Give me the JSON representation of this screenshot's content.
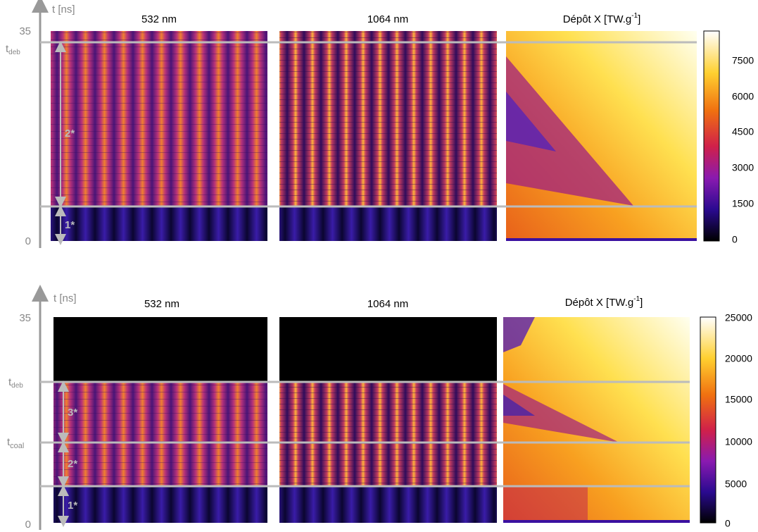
{
  "figures": [
    {
      "time_axis_label": "t [ns]",
      "time_ticks": [
        "35",
        "0"
      ],
      "events": [
        {
          "symbol": "t",
          "sub": "deb"
        }
      ],
      "panels": [
        "532 nm",
        "1064 nm"
      ],
      "deposit_title": {
        "text": "Dépôt X [TW.g",
        "sup": "-1",
        "close": "]"
      },
      "colorbar_ticks": [
        "7500",
        "6000",
        "4500",
        "3000",
        "1500",
        "0"
      ],
      "phases": [
        "2*",
        "1*"
      ]
    },
    {
      "time_axis_label": "t [ns]",
      "time_ticks": [
        "35",
        "0"
      ],
      "events": [
        {
          "symbol": "t",
          "sub": "deb"
        },
        {
          "symbol": "t",
          "sub": "coal"
        }
      ],
      "panels": [
        "532 nm",
        "1064 nm"
      ],
      "deposit_title": {
        "text": "Dépôt X [TW.g",
        "sup": "-1",
        "close": "]"
      },
      "colorbar_ticks": [
        "25000",
        "20000",
        "15000",
        "10000",
        "5000",
        "0"
      ],
      "phases": [
        "3*",
        "2*",
        "1*"
      ]
    }
  ]
}
